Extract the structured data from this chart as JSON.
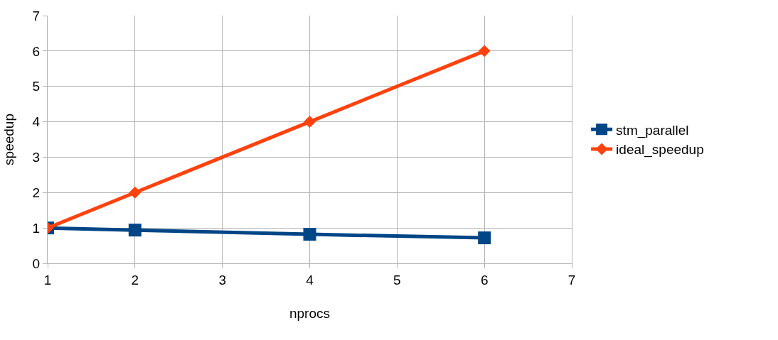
{
  "chart_data": {
    "type": "line",
    "xlabel": "nprocs",
    "ylabel": "speedup",
    "x": [
      1,
      2,
      4,
      6
    ],
    "series": [
      {
        "name": "stm_parallel",
        "color": "#004586",
        "values": [
          1,
          0.94,
          0.82,
          0.72
        ],
        "marker": "square"
      },
      {
        "name": "ideal_speedup",
        "color": "#ff420e",
        "values": [
          1,
          2,
          4,
          6
        ],
        "marker": "diamond"
      }
    ],
    "xlim": [
      1,
      7
    ],
    "xticks": [
      1,
      2,
      3,
      4,
      5,
      6,
      7
    ],
    "ylim": [
      0,
      7
    ],
    "yticks": [
      0,
      1,
      2,
      3,
      4,
      5,
      6,
      7
    ],
    "grid": true,
    "legend": "right",
    "line_style": "solid"
  }
}
